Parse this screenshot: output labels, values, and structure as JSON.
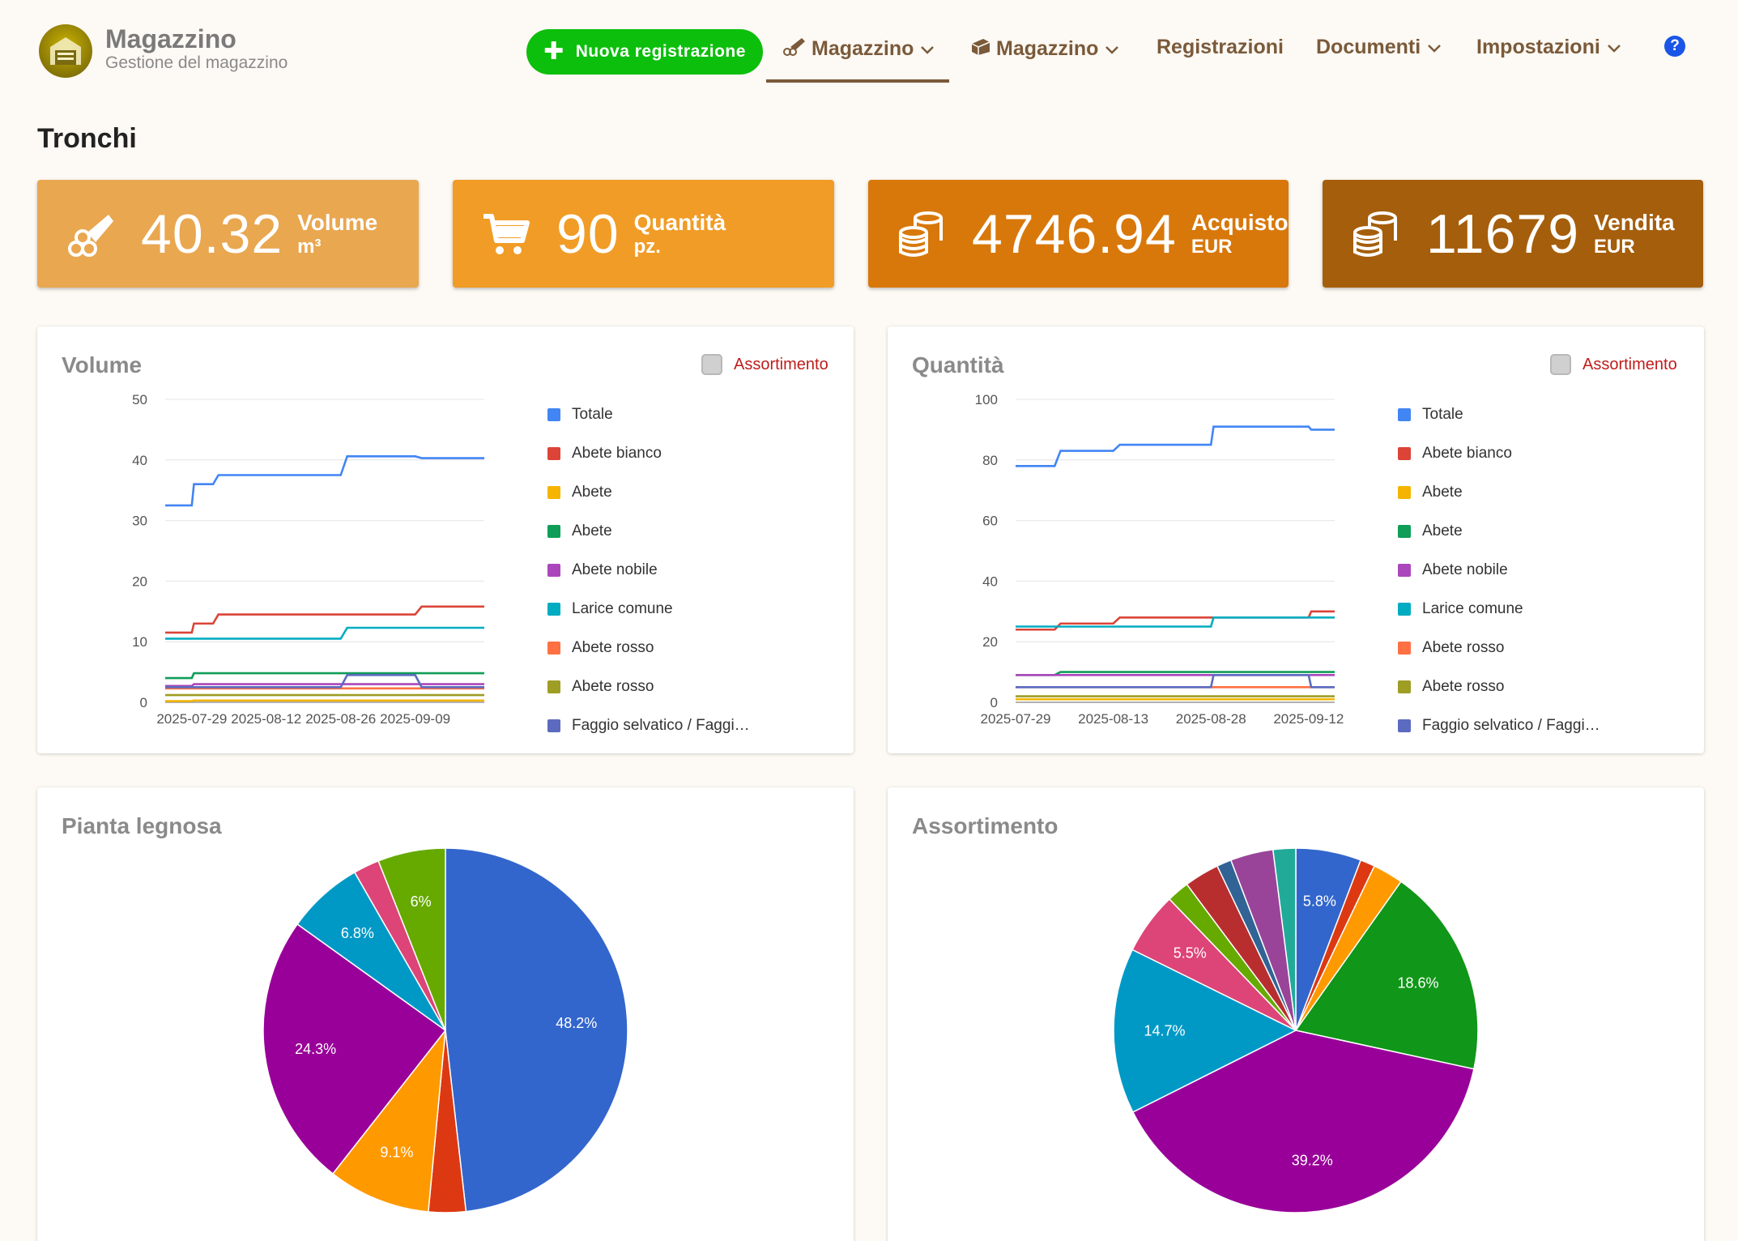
{
  "header": {
    "brand_title": "Magazzino",
    "brand_subtitle": "Gestione del magazzino",
    "new_button": "Nuova registrazione",
    "nav": [
      {
        "label": "Magazzino",
        "active": true
      },
      {
        "label": "Magazzino",
        "active": false
      },
      {
        "label": "Registrazioni",
        "active": false
      },
      {
        "label": "Documenti",
        "active": false
      },
      {
        "label": "Impostazioni",
        "active": false
      }
    ],
    "help": "?"
  },
  "page_title": "Tronchi",
  "kpis": [
    {
      "value": "40.32",
      "label": "Volume",
      "unit": "m³",
      "color": "#e9a750"
    },
    {
      "value": "90",
      "label": "Quantità",
      "unit": "pz.",
      "color": "#f19c26"
    },
    {
      "value": "4746.94",
      "label": "Acquisto",
      "unit": "EUR",
      "color": "#d8780a"
    },
    {
      "value": "11679",
      "label": "Vendita",
      "unit": "EUR",
      "color": "#a55e0b"
    }
  ],
  "volume_panel": {
    "title": "Volume",
    "toggle_label": "Assortimento"
  },
  "quantity_panel": {
    "title": "Quantità",
    "toggle_label": "Assortimento"
  },
  "species_panel": {
    "title": "Pianta legnosa"
  },
  "assort_panel": {
    "title": "Assortimento"
  },
  "chart_data": [
    {
      "type": "line",
      "title": "Volume",
      "ylim": [
        0,
        50
      ],
      "yticks": [
        0,
        10,
        20,
        30,
        40,
        50
      ],
      "xlabels": [
        "2025-07-29",
        "2025-08-12",
        "2025-08-26",
        "2025-09-09"
      ],
      "x": [
        "2025-07-24",
        "2025-07-29",
        "2025-08-02",
        "2025-08-12",
        "2025-08-26",
        "2025-09-09",
        "2025-09-22"
      ],
      "series": [
        {
          "name": "Totale",
          "color": "#4285f4",
          "values": [
            32.5,
            32.5,
            36,
            37.5,
            37.5,
            40.6,
            40.3
          ]
        },
        {
          "name": "Abete bianco",
          "color": "#db4437",
          "values": [
            11.5,
            11.5,
            13,
            14.5,
            14.5,
            14.5,
            15.8
          ]
        },
        {
          "name": "Abete",
          "color": "#f4b400",
          "values": [
            0.2,
            0.2,
            0.3,
            0.3,
            0.3,
            0.3,
            0.3
          ]
        },
        {
          "name": "Abete",
          "color": "#0f9d58",
          "values": [
            4,
            4,
            4.8,
            4.8,
            4.8,
            4.8,
            4.8
          ]
        },
        {
          "name": "Abete nobile",
          "color": "#ab47bc",
          "values": [
            2.7,
            2.7,
            3,
            3,
            3,
            3,
            3
          ]
        },
        {
          "name": "Larice comune",
          "color": "#00acc1",
          "values": [
            10.5,
            10.5,
            10.5,
            10.5,
            10.5,
            12.3,
            12.3
          ]
        },
        {
          "name": "Abete rosso",
          "color": "#ff7043",
          "values": [
            2.3,
            2.3,
            2.3,
            2.3,
            2.3,
            2.3,
            2.3
          ]
        },
        {
          "name": "Abete rosso",
          "color": "#9e9d24",
          "values": [
            1.2,
            1.2,
            1.2,
            1.2,
            1.2,
            1.2,
            1.2
          ]
        },
        {
          "name": "Faggio selvatico / Faggi…",
          "color": "#5c6bc0",
          "values": [
            2.5,
            2.5,
            2.5,
            2.5,
            2.5,
            4.5,
            2.5
          ]
        }
      ]
    },
    {
      "type": "line",
      "title": "Quantità",
      "ylim": [
        0,
        100
      ],
      "yticks": [
        0,
        20,
        40,
        60,
        80,
        100
      ],
      "xlabels": [
        "2025-07-29",
        "2025-08-13",
        "2025-08-28",
        "2025-09-12"
      ],
      "x": [
        "2025-07-29",
        "2025-08-04",
        "2025-08-13",
        "2025-08-28",
        "2025-09-01",
        "2025-09-12",
        "2025-09-16"
      ],
      "series": [
        {
          "name": "Totale",
          "color": "#4285f4",
          "values": [
            78,
            78,
            83,
            85,
            91,
            91,
            90
          ]
        },
        {
          "name": "Abete bianco",
          "color": "#db4437",
          "values": [
            24,
            24,
            26,
            28,
            28,
            28,
            30
          ]
        },
        {
          "name": "Abete",
          "color": "#f4b400",
          "values": [
            1,
            1,
            1,
            1,
            1,
            1,
            1
          ]
        },
        {
          "name": "Abete",
          "color": "#0f9d58",
          "values": [
            9,
            9,
            10,
            10,
            10,
            10,
            10
          ]
        },
        {
          "name": "Abete nobile",
          "color": "#ab47bc",
          "values": [
            9,
            9,
            9,
            9,
            9,
            9,
            9
          ]
        },
        {
          "name": "Larice comune",
          "color": "#00acc1",
          "values": [
            25,
            25,
            25,
            25,
            28,
            28,
            28
          ]
        },
        {
          "name": "Abete rosso",
          "color": "#ff7043",
          "values": [
            5,
            5,
            5,
            5,
            5,
            5,
            5
          ]
        },
        {
          "name": "Abete rosso",
          "color": "#9e9d24",
          "values": [
            2,
            2,
            2,
            2,
            2,
            2,
            2
          ]
        },
        {
          "name": "Faggio selvatico / Faggi…",
          "color": "#5c6bc0",
          "values": [
            5,
            5,
            5,
            5,
            9,
            9,
            5
          ]
        }
      ]
    },
    {
      "type": "pie",
      "title": "Pianta legnosa",
      "slices": [
        {
          "value": 48.2,
          "label": "48.2%",
          "color": "#3366cc"
        },
        {
          "value": 3.3,
          "label": "",
          "color": "#dc3912"
        },
        {
          "value": 9.1,
          "label": "9.1%",
          "color": "#ff9900"
        },
        {
          "value": 24.3,
          "label": "24.3%",
          "color": "#990099"
        },
        {
          "value": 6.8,
          "label": "6.8%",
          "color": "#0099c6"
        },
        {
          "value": 2.3,
          "label": "",
          "color": "#dd4477"
        },
        {
          "value": 6.0,
          "label": "6%",
          "color": "#66aa00"
        }
      ]
    },
    {
      "type": "pie",
      "title": "Assortimento",
      "slices": [
        {
          "value": 5.8,
          "label": "5.8%",
          "color": "#3366cc"
        },
        {
          "value": 1.3,
          "label": "",
          "color": "#dc3912"
        },
        {
          "value": 2.7,
          "label": "",
          "color": "#ff9900"
        },
        {
          "value": 18.6,
          "label": "18.6%",
          "color": "#109618"
        },
        {
          "value": 39.2,
          "label": "39.2%",
          "color": "#990099"
        },
        {
          "value": 14.7,
          "label": "14.7%",
          "color": "#0099c6"
        },
        {
          "value": 5.5,
          "label": "5.5%",
          "color": "#dd4477"
        },
        {
          "value": 2.0,
          "label": "",
          "color": "#66aa00"
        },
        {
          "value": 3.1,
          "label": "",
          "color": "#b82e2e"
        },
        {
          "value": 1.3,
          "label": "",
          "color": "#316395"
        },
        {
          "value": 3.8,
          "label": "",
          "color": "#994499"
        },
        {
          "value": 2.0,
          "label": "",
          "color": "#22aa99"
        }
      ]
    }
  ]
}
